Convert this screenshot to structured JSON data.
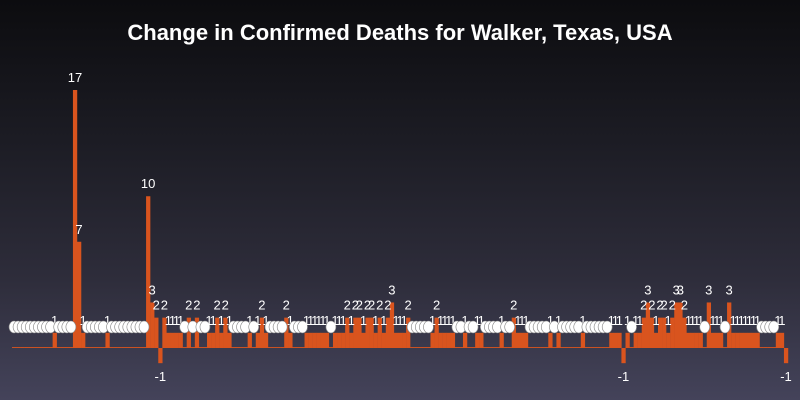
{
  "chart_data": {
    "type": "bar",
    "title": "Change in Confirmed Deaths for Walker, Texas, USA",
    "xlabel": "",
    "ylabel": "",
    "ylim": [
      -1,
      17
    ],
    "grid": false,
    "legend": "none",
    "colors": {
      "bar": "#d9541e",
      "label": "#ffffff"
    },
    "values": [
      0,
      0,
      0,
      0,
      0,
      0,
      0,
      0,
      0,
      0,
      1,
      0,
      0,
      0,
      0,
      17,
      7,
      1,
      0,
      0,
      0,
      0,
      0,
      1,
      0,
      0,
      0,
      0,
      0,
      0,
      0,
      0,
      0,
      10,
      3,
      2,
      -1,
      2,
      1,
      1,
      1,
      1,
      0,
      2,
      0,
      2,
      0,
      0,
      1,
      1,
      2,
      1,
      2,
      1,
      0,
      0,
      0,
      0,
      1,
      0,
      1,
      2,
      1,
      0,
      0,
      0,
      0,
      2,
      1,
      0,
      0,
      0,
      1,
      1,
      1,
      1,
      1,
      1,
      0,
      1,
      1,
      1,
      2,
      1,
      2,
      2,
      1,
      2,
      2,
      1,
      2,
      1,
      2,
      3,
      1,
      1,
      1,
      2,
      0,
      0,
      0,
      0,
      0,
      1,
      2,
      1,
      1,
      1,
      1,
      0,
      0,
      1,
      0,
      0,
      1,
      1,
      0,
      0,
      0,
      0,
      1,
      0,
      0,
      2,
      1,
      1,
      1,
      0,
      0,
      0,
      0,
      0,
      1,
      0,
      1,
      0,
      0,
      0,
      0,
      0,
      1,
      0,
      0,
      0,
      0,
      0,
      0,
      1,
      1,
      1,
      -1,
      1,
      0,
      1,
      1,
      2,
      3,
      2,
      1,
      2,
      2,
      1,
      2,
      3,
      3,
      2,
      1,
      1,
      1,
      1,
      0,
      3,
      1,
      1,
      1,
      0,
      3,
      1,
      1,
      1,
      1,
      1,
      1,
      1,
      0,
      0,
      0,
      0,
      1,
      1,
      -1
    ]
  }
}
